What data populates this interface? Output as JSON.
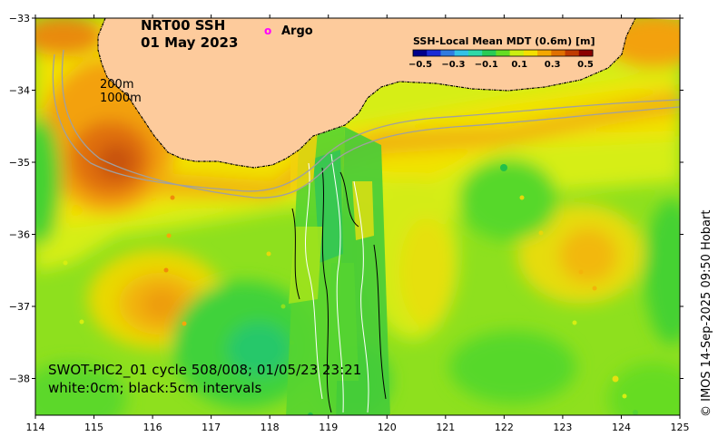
{
  "title": {
    "line1": "NRT00 SSH",
    "line2": "01 May 2023"
  },
  "argo_legend": {
    "marker": "o",
    "label": "Argo",
    "color": "#ff00ff"
  },
  "colorbar": {
    "title": "SSH-Local Mean MDT (0.6m) [m]",
    "ticks": [
      "−0.5",
      "−0.3",
      "−0.1",
      "0.1",
      "0.3",
      "0.5"
    ],
    "colors": [
      "#00008b",
      "#1a2bd6",
      "#2f7be0",
      "#33c2e6",
      "#2fd9a8",
      "#29cc55",
      "#66dd22",
      "#ccee11",
      "#f4e000",
      "#f5a800",
      "#e07000",
      "#c03a00",
      "#8b0000"
    ]
  },
  "isobaths": {
    "label1": "200m",
    "label2": "1000m",
    "color": "#a0a0a0"
  },
  "axes": {
    "x_ticks": [
      "114",
      "115",
      "116",
      "117",
      "118",
      "119",
      "120",
      "121",
      "122",
      "123",
      "124",
      "125"
    ],
    "y_ticks": [
      "−33",
      "−34",
      "−35",
      "−36",
      "−37",
      "−38"
    ]
  },
  "info": {
    "line1": "SWOT-PIC2_01 cycle 508/008; 01/05/23 23:21",
    "line2": "white:0cm; black:5cm intervals"
  },
  "credit": "© IMOS 14-Sep-2025 09:50 Hobart",
  "colors": {
    "land": "#fdcb9c",
    "coast": "#000000",
    "frame": "#000000"
  }
}
